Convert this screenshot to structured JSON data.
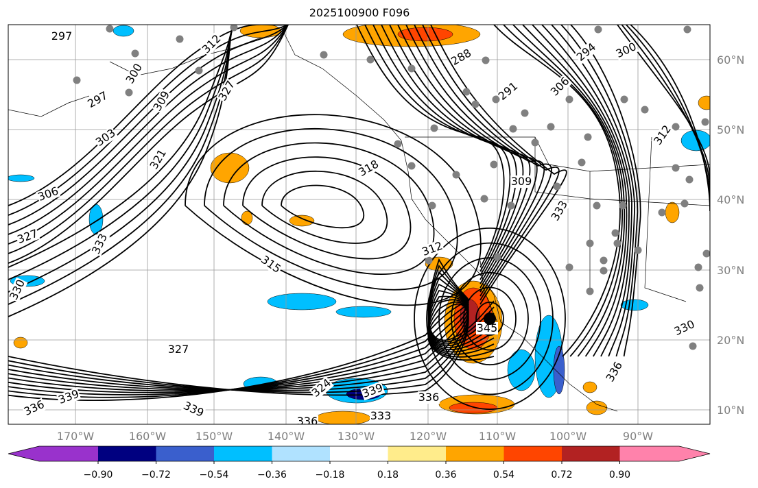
{
  "title": "2025100900 F096",
  "map": {
    "lat_labels": [
      "60°N",
      "50°N",
      "40°N",
      "30°N",
      "20°N",
      "10°N"
    ],
    "lon_labels": [
      "170°W",
      "160°W",
      "150°W",
      "140°W",
      "130°W",
      "120°W",
      "110°W",
      "100°W",
      "90°W"
    ],
    "contour_labels": [
      "297",
      "297",
      "303",
      "306",
      "327",
      "333",
      "330",
      "312",
      "300",
      "309",
      "321",
      "315",
      "288",
      "291",
      "294",
      "300",
      "306",
      "309",
      "312",
      "333",
      "336",
      "339",
      "336",
      "339",
      "327",
      "324",
      "336",
      "333",
      "345",
      "330",
      "312",
      "318",
      "327",
      "339",
      "336"
    ],
    "storm_marker": "hurricane-center"
  },
  "colorbar": {
    "ticks": [
      "−0.90",
      "−0.72",
      "−0.54",
      "−0.36",
      "−0.18",
      "0.18",
      "0.36",
      "0.54",
      "0.72",
      "0.90"
    ],
    "colors": [
      "#9932CC",
      "#000080",
      "#3A5FCD",
      "#00BFFF",
      "#B0E2FF",
      "#FFFFFF",
      "#FFEC8B",
      "#FFA500",
      "#FF4500",
      "#B22222",
      "#FF82AB"
    ]
  }
}
